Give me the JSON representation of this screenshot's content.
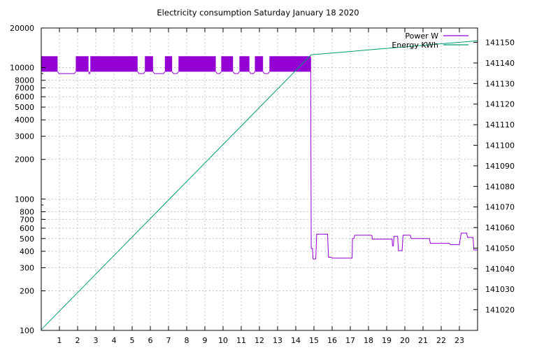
{
  "chart_data": {
    "type": "line",
    "title": "Electricity consumption Saturday January 18 2020",
    "xlim": [
      0,
      24
    ],
    "x_ticks": [
      1,
      2,
      3,
      4,
      5,
      6,
      7,
      8,
      9,
      10,
      11,
      12,
      13,
      14,
      15,
      16,
      17,
      18,
      19,
      20,
      21,
      22,
      23
    ],
    "y_left": {
      "scale": "log",
      "lim": [
        100,
        20000
      ],
      "ticks": [
        100,
        200,
        300,
        400,
        500,
        600,
        700,
        800,
        1000,
        2000,
        3000,
        4000,
        5000,
        6000,
        7000,
        8000,
        10000,
        20000
      ]
    },
    "y_right": {
      "scale": "linear",
      "lim": [
        141010,
        141157
      ],
      "ticks": [
        141020,
        141030,
        141040,
        141050,
        141060,
        141070,
        141080,
        141090,
        141100,
        141110,
        141120,
        141130,
        141140,
        141150
      ]
    },
    "legend_position": "top-right",
    "grid": true,
    "series": [
      {
        "name": "Power W",
        "axis": "left",
        "color": "#9400d3",
        "style": "band",
        "band_low": 9300,
        "band_high": 12200,
        "band_until": 14.82,
        "band_segments": [
          [
            0,
            0.9
          ],
          [
            1.9,
            2.6
          ],
          [
            2.7,
            5.3
          ],
          [
            5.7,
            6.15
          ],
          [
            6.8,
            7.2
          ],
          [
            7.55,
            9.6
          ],
          [
            9.9,
            10.55
          ],
          [
            10.9,
            11.45
          ],
          [
            11.75,
            12.2
          ],
          [
            12.55,
            14.82
          ]
        ],
        "band_gap_level": 9000,
        "tail": [
          [
            14.82,
            12000
          ],
          [
            14.85,
            420
          ],
          [
            14.92,
            420
          ],
          [
            14.95,
            350
          ],
          [
            15.1,
            350
          ],
          [
            15.12,
            420
          ],
          [
            15.15,
            540
          ],
          [
            15.75,
            540
          ],
          [
            15.8,
            360
          ],
          [
            15.95,
            360
          ],
          [
            16.0,
            355
          ],
          [
            17.1,
            355
          ],
          [
            17.12,
            500
          ],
          [
            17.2,
            500
          ],
          [
            17.25,
            530
          ],
          [
            18.15,
            530
          ],
          [
            18.2,
            520
          ],
          [
            18.2,
            495
          ],
          [
            19.3,
            495
          ],
          [
            19.32,
            440
          ],
          [
            19.37,
            440
          ],
          [
            19.4,
            520
          ],
          [
            19.6,
            520
          ],
          [
            19.65,
            405
          ],
          [
            19.85,
            405
          ],
          [
            19.9,
            530
          ],
          [
            20.3,
            530
          ],
          [
            20.35,
            500
          ],
          [
            21.35,
            500
          ],
          [
            21.4,
            460
          ],
          [
            22.45,
            460
          ],
          [
            22.5,
            450
          ],
          [
            23.0,
            450
          ],
          [
            23.1,
            550
          ],
          [
            23.4,
            550
          ],
          [
            23.45,
            510
          ],
          [
            23.75,
            510
          ],
          [
            23.8,
            410
          ],
          [
            24.0,
            410
          ]
        ]
      },
      {
        "name": "Energy KWh",
        "axis": "right",
        "color": "#009e73",
        "points": [
          [
            0,
            141010.4
          ],
          [
            14.85,
            141144.0
          ],
          [
            24.0,
            141150.8
          ]
        ]
      }
    ]
  }
}
